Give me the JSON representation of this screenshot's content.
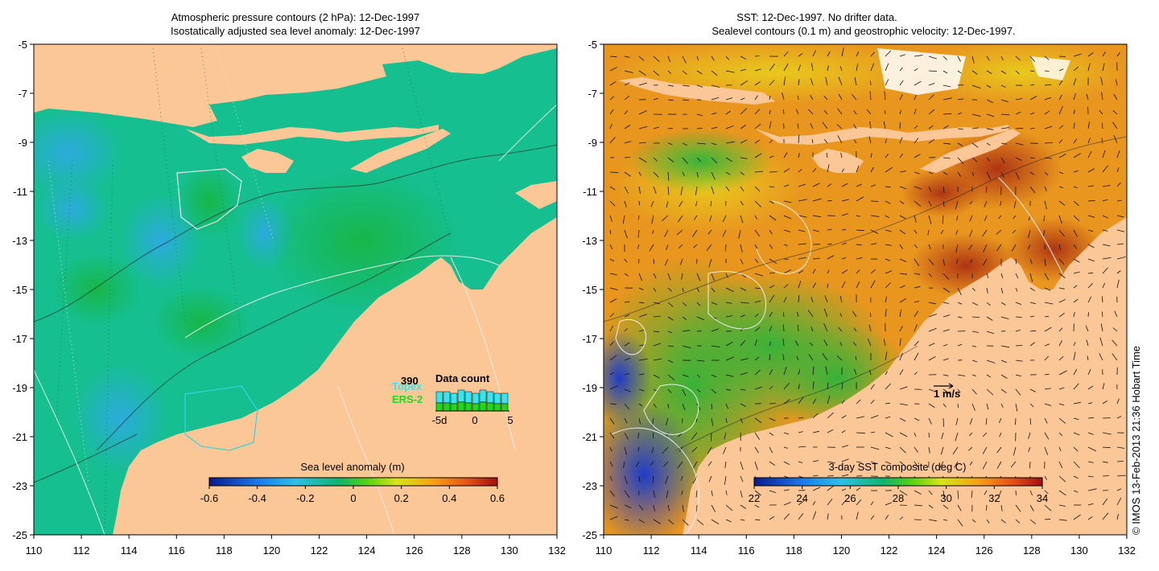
{
  "left_panel": {
    "title_line1": "Atmospheric pressure contours (2 hPa): 12-Dec-1997",
    "title_line2": "Isostatically adjusted sea level anomaly: 12-Dec-1997",
    "colorbar": {
      "label": "Sea level anomaly (m)",
      "ticks": [
        "-0.6",
        "-0.4",
        "-0.2",
        "0",
        "0.2",
        "0.4",
        "0.6"
      ]
    },
    "data_count": {
      "title": "Data count",
      "count": "390",
      "topex_label": "Topex",
      "ers2_label": "ERS-2",
      "axis_ticks": [
        "-5d",
        "0",
        "5"
      ],
      "topex_color": "#33e6f0",
      "ers2_color": "#1ed81e"
    }
  },
  "right_panel": {
    "title_line1": "SST: 12-Dec-1997. No drifter data.",
    "title_line2": "Sealevel contours (0.1 m) and geostrophic velocity: 12-Dec-1997.",
    "scale_label": "1 m/s",
    "colorbar": {
      "label": "3-day SST composite (deg C)",
      "ticks": [
        "22",
        "24",
        "26",
        "28",
        "30",
        "32",
        "34"
      ]
    }
  },
  "axes": {
    "x_ticks": [
      "110",
      "112",
      "114",
      "116",
      "118",
      "120",
      "122",
      "124",
      "126",
      "128",
      "130",
      "132"
    ],
    "y_ticks": [
      "-5",
      "-7",
      "-9",
      "-11",
      "-13",
      "-15",
      "-17",
      "-19",
      "-21",
      "-23",
      "-25"
    ],
    "lon_range": [
      110,
      132
    ],
    "lat_range": [
      -25,
      -5
    ]
  },
  "credit": "© IMOS 13-Feb-2013 21:36 Hobart Time",
  "colors": {
    "land": "#fcc797",
    "sla_ocean": "#15bf8f",
    "sst_ocean": "#e08a1e"
  }
}
